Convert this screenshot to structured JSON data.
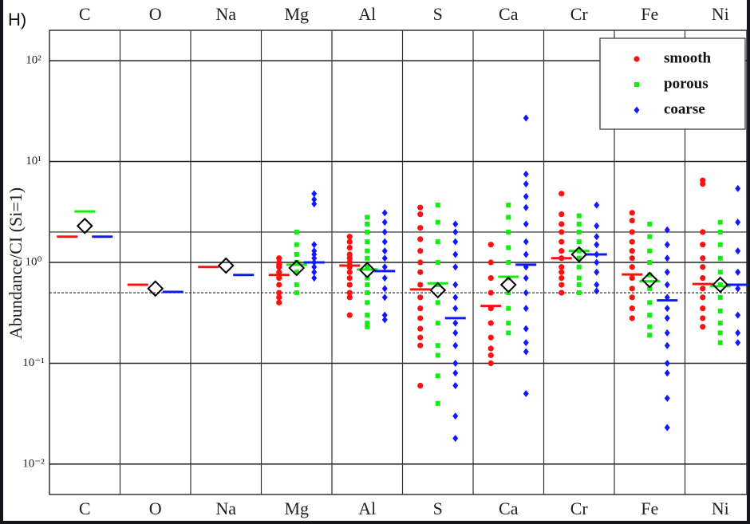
{
  "chart_data": {
    "type": "scatter",
    "panel_label": "H)",
    "y_label": "Abundance/CI (Si=1)",
    "categories": [
      "C",
      "O",
      "Na",
      "Mg",
      "Al",
      "S",
      "Ca",
      "Cr",
      "Fe",
      "Ni"
    ],
    "log_y": true,
    "ylim": [
      0.005,
      200
    ],
    "yticks": [
      {
        "value": 0.01,
        "label": "10⁻²"
      },
      {
        "value": 0.1,
        "label": "10⁻¹"
      },
      {
        "value": 1,
        "label": "10⁰"
      },
      {
        "value": 10,
        "label": "10¹"
      },
      {
        "value": 100,
        "label": "10²"
      }
    ],
    "grid": true,
    "hlines": [
      2,
      0.5
    ],
    "legend": "upper right",
    "overall": [
      2.3,
      0.55,
      0.93,
      0.88,
      0.84,
      0.53,
      0.6,
      1.2,
      0.67,
      0.6
    ],
    "series": [
      {
        "name": "smooth",
        "color": "#ff1010",
        "marker": "circle",
        "means": [
          1.8,
          0.6,
          0.9,
          0.75,
          0.93,
          0.54,
          0.37,
          1.1,
          0.76,
          0.61
        ],
        "points": [
          [],
          [],
          [],
          [
            1.1,
            1.0,
            0.95,
            0.9,
            0.8,
            0.7,
            0.6,
            0.5,
            0.45,
            0.4
          ],
          [
            1.8,
            1.6,
            1.4,
            1.2,
            1.1,
            1.0,
            0.9,
            0.8,
            0.7,
            0.6,
            0.5,
            0.45,
            0.3
          ],
          [
            3.5,
            3.0,
            2.2,
            1.7,
            1.3,
            1.0,
            0.8,
            0.6,
            0.45,
            0.35,
            0.28,
            0.22,
            0.18,
            0.15,
            0.06
          ],
          [
            1.5,
            1.0,
            0.7,
            0.5,
            0.35,
            0.25,
            0.18,
            0.14,
            0.12,
            0.1
          ],
          [
            4.8,
            3.0,
            2.4,
            2.0,
            1.6,
            1.3,
            1.1,
            0.9,
            0.8,
            0.7,
            0.6,
            0.5
          ],
          [
            3.1,
            2.6,
            2.0,
            1.6,
            1.3,
            1.1,
            0.9,
            0.7,
            0.55,
            0.45,
            0.35,
            0.28
          ],
          [
            6.5,
            6.0,
            2.0,
            1.5,
            1.1,
            0.9,
            0.7,
            0.55,
            0.45,
            0.35,
            0.28,
            0.23
          ]
        ]
      },
      {
        "name": "porous",
        "color": "#10ee10",
        "marker": "square",
        "means": [
          3.2,
          null,
          null,
          0.95,
          0.85,
          0.62,
          0.72,
          1.3,
          0.65,
          0.58
        ],
        "points": [
          [],
          [],
          [],
          [
            2.0,
            1.5,
            1.2,
            1.0,
            0.8,
            0.6,
            0.5
          ],
          [
            2.8,
            2.4,
            2.0,
            1.6,
            1.3,
            1.1,
            0.9,
            0.7,
            0.6,
            0.5,
            0.4,
            0.3,
            0.25,
            0.23
          ],
          [
            3.7,
            2.5,
            1.6,
            1.0,
            0.6,
            0.4,
            0.25,
            0.15,
            0.12,
            0.075,
            0.04
          ],
          [
            3.7,
            2.8,
            2.0,
            1.4,
            1.0,
            0.7,
            0.5,
            0.35,
            0.25,
            0.2
          ],
          [
            2.9,
            2.4,
            2.0,
            1.6,
            1.3,
            1.1,
            0.9,
            0.7,
            0.6,
            0.5
          ],
          [
            2.4,
            1.8,
            1.3,
            1.0,
            0.75,
            0.55,
            0.4,
            0.3,
            0.23,
            0.19
          ],
          [
            2.5,
            2.0,
            1.5,
            1.1,
            0.8,
            0.6,
            0.45,
            0.33,
            0.25,
            0.2,
            0.16
          ]
        ]
      },
      {
        "name": "coarse",
        "color": "#1018ff",
        "marker": "diamond",
        "means": [
          1.8,
          0.51,
          0.75,
          1.0,
          0.82,
          0.28,
          0.95,
          1.2,
          0.42,
          0.6
        ],
        "points": [
          [],
          [],
          [],
          [
            4.8,
            4.2,
            3.8,
            1.5,
            1.3,
            1.2,
            1.1,
            1.0,
            0.9,
            0.8,
            0.7
          ],
          [
            3.1,
            2.5,
            2.0,
            1.6,
            1.3,
            1.1,
            0.9,
            0.7,
            0.55,
            0.45,
            0.3,
            0.27
          ],
          [
            2.4,
            2.0,
            1.6,
            1.2,
            0.9,
            0.6,
            0.45,
            0.35,
            0.25,
            0.2,
            0.15,
            0.1,
            0.08,
            0.06,
            0.03,
            0.018
          ],
          [
            27,
            7.5,
            6.0,
            4.5,
            3.5,
            2.4,
            1.6,
            1.2,
            0.9,
            0.7,
            0.5,
            0.35,
            0.22,
            0.16,
            0.13,
            0.05
          ],
          [
            3.7,
            2.3,
            1.8,
            1.5,
            1.2,
            1.0,
            0.8,
            0.6,
            0.52
          ],
          [
            2.1,
            1.5,
            1.1,
            0.8,
            0.6,
            0.45,
            0.35,
            0.28,
            0.2,
            0.15,
            0.1,
            0.08,
            0.045,
            0.023
          ],
          [
            5.4,
            2.5,
            1.3,
            0.8,
            0.55,
            0.3,
            0.2,
            0.16
          ]
        ]
      }
    ]
  }
}
